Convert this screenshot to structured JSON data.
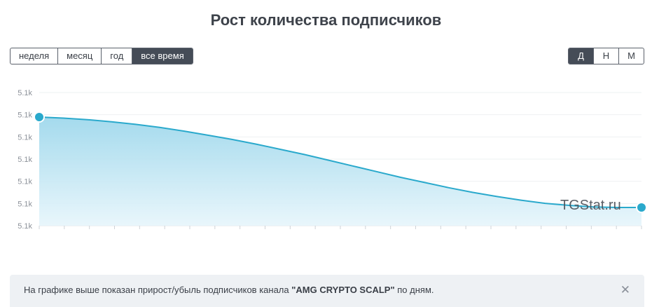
{
  "title": "Рост количества подписчиков",
  "period_buttons": [
    {
      "label": "неделя",
      "active": false
    },
    {
      "label": "месяц",
      "active": false
    },
    {
      "label": "год",
      "active": false
    },
    {
      "label": "все время",
      "active": true
    }
  ],
  "granularity_buttons": [
    {
      "label": "Д",
      "active": true
    },
    {
      "label": "Н",
      "active": false
    },
    {
      "label": "М",
      "active": false
    }
  ],
  "watermark": "TGStat.ru",
  "info": {
    "prefix": "На графике выше показан прирост/убыль подписчиков канала ",
    "channel": "\"AMG CRYPTO SCALP\"",
    "suffix": " по дням."
  },
  "colors": {
    "line": "#2aa9cc",
    "fill_top": "#9fd8ec",
    "fill_bottom": "#e6f5fb",
    "active_button": "#454c57"
  },
  "chart_data": {
    "type": "area",
    "y_tick_labels": [
      "5.1k",
      "5.1k",
      "5.1k",
      "5.1k",
      "5.1k",
      "5.1k",
      "5.1k"
    ],
    "x_tick_count": 24,
    "series": [
      {
        "values": [
          1.0,
          0.99,
          0.975,
          0.955,
          0.93,
          0.9,
          0.865,
          0.825,
          0.785,
          0.74,
          0.69,
          0.64,
          0.585,
          0.53,
          0.475,
          0.42,
          0.37,
          0.32,
          0.275,
          0.235,
          0.2,
          0.17,
          0.15,
          0.135,
          0.13,
          0.13
        ]
      }
    ],
    "markers": "endpoints",
    "grid": true
  }
}
